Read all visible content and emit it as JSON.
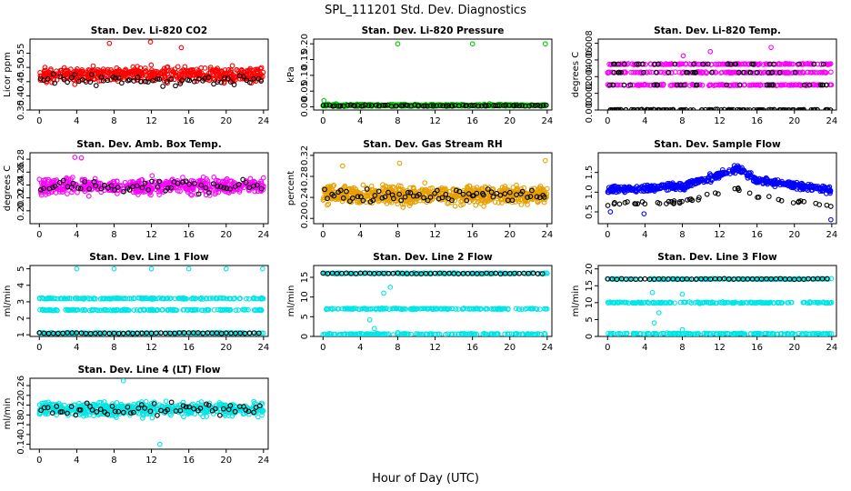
{
  "figure": {
    "title": "SPL_111201  Std. Dev. Diagnostics",
    "xlabel": "Hour of Day (UTC)"
  },
  "chart_data": [
    {
      "type": "scatter",
      "title": "Stan. Dev. Li-820 CO2",
      "ylabel": "Licor ppm",
      "xlim": [
        -1,
        24.5
      ],
      "xticks": [
        0,
        4,
        8,
        12,
        16,
        20,
        24
      ],
      "ylim": [
        0.35,
        0.6
      ],
      "yticks": [
        0.35,
        0.4,
        0.45,
        0.5,
        0.55
      ],
      "ytick_labels": [
        "0.35",
        "0.40",
        "0.45",
        "0.50",
        "0.55"
      ],
      "colors": {
        "primary": "#ff0000",
        "secondary": "#000000"
      },
      "bands": [
        {
          "y": 0.475,
          "spread": 0.045,
          "n": 520,
          "color": "#ff0000"
        }
      ],
      "highlights": [
        {
          "y": 0.455,
          "spread": 0.035,
          "n": 60,
          "color": "#000000"
        }
      ],
      "outliers": [
        [
          11.9,
          0.59
        ],
        [
          7.5,
          0.585
        ],
        [
          15.2,
          0.57
        ]
      ]
    },
    {
      "type": "scatter",
      "title": "Stan. Dev. Li-820 Pressure",
      "ylabel": "kPa",
      "xlim": [
        -1,
        24.5
      ],
      "xticks": [
        0,
        4,
        8,
        12,
        16,
        20,
        24
      ],
      "ylim": [
        -0.01,
        0.215
      ],
      "yticks": [
        0.0,
        0.05,
        0.1,
        0.15,
        0.2
      ],
      "ytick_labels": [
        "0.00",
        "0.05",
        "0.10",
        "0.15",
        "0.20"
      ],
      "colors": {
        "primary": "#00cc00",
        "secondary": "#000000"
      },
      "bands": [
        {
          "y": 0.005,
          "spread": 0.006,
          "n": 420,
          "color": "#00cc00"
        }
      ],
      "highlights": [
        {
          "y": 0.004,
          "spread": 0.004,
          "n": 80,
          "color": "#000000"
        }
      ],
      "outliers": [
        [
          8.0,
          0.2
        ],
        [
          16.0,
          0.2
        ],
        [
          23.8,
          0.2
        ],
        [
          0.1,
          0.02
        ]
      ]
    },
    {
      "type": "scatter",
      "title": "Stan. Dev. Li-820 Temp.",
      "ylabel": "degrees C",
      "xlim": [
        -1,
        24.5
      ],
      "xticks": [
        0,
        4,
        8,
        12,
        16,
        20,
        24
      ],
      "ylim": [
        0,
        0.0085
      ],
      "yticks": [
        0.0,
        0.002,
        0.004,
        0.006,
        0.008
      ],
      "ytick_labels": [
        "0.000",
        "0.002",
        "0.004",
        "0.006",
        "0.008"
      ],
      "colors": {
        "primary": "#ff00ff",
        "secondary": "#000000"
      },
      "levels": [
        0.0,
        0.003,
        0.0045,
        0.0055
      ],
      "outliers": [
        [
          17.5,
          0.0075
        ],
        [
          8.1,
          0.0065
        ],
        [
          11.0,
          0.007
        ]
      ]
    },
    {
      "type": "scatter",
      "title": "Stan. Dev. Amb. Box Temp.",
      "ylabel": "degrees C",
      "xlim": [
        -1,
        24.5
      ],
      "xticks": [
        0,
        4,
        8,
        12,
        16,
        20,
        24
      ],
      "ylim": [
        0.18,
        0.29
      ],
      "yticks": [
        0.2,
        0.22,
        0.24,
        0.26,
        0.28
      ],
      "ytick_labels": [
        "0.20",
        "0.22",
        "0.24",
        "0.26",
        "0.28"
      ],
      "colors": {
        "primary": "#ff00ff",
        "secondary": "#000000"
      },
      "bands": [
        {
          "y": 0.238,
          "spread": 0.022,
          "n": 480,
          "color": "#ff00ff"
        }
      ],
      "highlights": [
        {
          "y": 0.238,
          "spread": 0.018,
          "n": 60,
          "color": "#000000"
        }
      ],
      "outliers": [
        [
          3.8,
          0.283
        ],
        [
          4.5,
          0.282
        ]
      ]
    },
    {
      "type": "scatter",
      "title": "Stan. Dev. Gas Stream RH",
      "ylabel": "percent",
      "xlim": [
        -1,
        24.5
      ],
      "xticks": [
        0,
        4,
        8,
        12,
        16,
        20,
        24
      ],
      "ylim": [
        0.19,
        0.325
      ],
      "yticks": [
        0.2,
        0.24,
        0.28,
        0.32
      ],
      "ytick_labels": [
        "0.20",
        "0.24",
        "0.28",
        "0.32"
      ],
      "colors": {
        "primary": "#e8a000",
        "secondary": "#000000"
      },
      "bands": [
        {
          "y": 0.245,
          "spread": 0.03,
          "n": 700,
          "color": "#e8a000"
        }
      ],
      "highlights": [
        {
          "y": 0.245,
          "spread": 0.022,
          "n": 70,
          "color": "#000000"
        }
      ],
      "outliers": [
        [
          23.8,
          0.31
        ],
        [
          8.2,
          0.305
        ],
        [
          2.1,
          0.3
        ]
      ]
    },
    {
      "type": "scatter",
      "title": "Stan. Dev. Sample Flow",
      "ylabel": "",
      "xlim": [
        -1,
        24.5
      ],
      "xticks": [
        0,
        4,
        8,
        12,
        16,
        20,
        24
      ],
      "ylim": [
        0.2,
        2.0
      ],
      "yticks": [
        0.5,
        1.0,
        1.5
      ],
      "ytick_labels": [
        "0.5",
        "1.0",
        "1.5"
      ],
      "colors": {
        "primary": "#0000ff",
        "secondary": "#000000"
      },
      "trend": {
        "x": [
          0,
          8,
          14,
          16,
          24
        ],
        "y": [
          1.05,
          1.15,
          1.6,
          1.3,
          1.05
        ]
      },
      "lower_trend": {
        "x": [
          0,
          8,
          14,
          16,
          24
        ],
        "y": [
          0.7,
          0.75,
          1.1,
          0.9,
          0.65
        ]
      },
      "outliers": [
        [
          23.9,
          0.3
        ],
        [
          0.3,
          0.5
        ],
        [
          3.9,
          0.45
        ]
      ]
    },
    {
      "type": "scatter",
      "title": "Stan. Dev. Line 1 Flow",
      "ylabel": "ml/min",
      "xlim": [
        -1,
        24.5
      ],
      "xticks": [
        0,
        4,
        8,
        12,
        16,
        20,
        24
      ],
      "ylim": [
        0.9,
        5.2
      ],
      "yticks": [
        1,
        2,
        3,
        4,
        5
      ],
      "ytick_labels": [
        "1",
        "2",
        "3",
        "4",
        "5"
      ],
      "colors": {
        "primary": "#00e5e5",
        "secondary": "#000000"
      },
      "levels": [
        3.2,
        2.5,
        1.1
      ],
      "black_level": 1.1,
      "outliers": [
        [
          4.0,
          5.0
        ],
        [
          8.0,
          5.0
        ],
        [
          12.0,
          5.0
        ],
        [
          16.0,
          5.0
        ],
        [
          20.0,
          5.0
        ],
        [
          23.9,
          5.0
        ]
      ]
    },
    {
      "type": "scatter",
      "title": "Stan. Dev. Line 2 Flow",
      "ylabel": "ml/min",
      "xlim": [
        -1,
        24.5
      ],
      "xticks": [
        0,
        4,
        8,
        12,
        16,
        20,
        24
      ],
      "ylim": [
        0,
        18
      ],
      "yticks": [
        0,
        5,
        10,
        15
      ],
      "ytick_labels": [
        "0",
        "5",
        "10",
        "15"
      ],
      "colors": {
        "primary": "#00e5e5",
        "secondary": "#000000"
      },
      "levels": [
        16,
        7,
        0.6
      ],
      "black_level": 16,
      "outliers": [
        [
          5.0,
          4.2
        ],
        [
          8.0,
          1.0
        ],
        [
          6.5,
          11
        ],
        [
          7.2,
          12.5
        ],
        [
          5.5,
          2.0
        ]
      ]
    },
    {
      "type": "scatter",
      "title": "Stan. Dev. Line 3 Flow",
      "ylabel": "ml/min",
      "xlim": [
        -1,
        24.5
      ],
      "xticks": [
        0,
        4,
        8,
        12,
        16,
        20,
        24
      ],
      "ylim": [
        0,
        21
      ],
      "yticks": [
        0,
        5,
        10,
        15,
        20
      ],
      "ytick_labels": [
        "0",
        "5",
        "10",
        "15",
        "20"
      ],
      "colors": {
        "primary": "#00e5e5",
        "secondary": "#000000"
      },
      "levels": [
        17,
        10,
        0.8
      ],
      "black_level": 17,
      "outliers": [
        [
          5.0,
          4.0
        ],
        [
          8.0,
          2.0
        ],
        [
          4.8,
          13
        ],
        [
          5.5,
          7
        ],
        [
          8.0,
          12.5
        ]
      ]
    },
    {
      "type": "scatter",
      "title": "Stan. Dev. Line 4 (LT) Flow",
      "ylabel": "ml/min",
      "xlim": [
        -1,
        24.5
      ],
      "xticks": [
        0,
        4,
        8,
        12,
        16,
        20,
        24
      ],
      "ylim": [
        0.13,
        0.275
      ],
      "yticks": [
        0.14,
        0.16,
        0.18,
        0.2,
        0.22,
        0.24,
        0.26
      ],
      "ytick_labels": [
        "0.14",
        "",
        "0.18",
        "",
        "0.22",
        "",
        "0.26"
      ],
      "colors": {
        "primary": "#00e5e5",
        "secondary": "#000000"
      },
      "bands": [
        {
          "y": 0.212,
          "spread": 0.025,
          "n": 520,
          "color": "#00e5e5"
        }
      ],
      "highlights": [
        {
          "y": 0.212,
          "spread": 0.022,
          "n": 60,
          "color": "#000000"
        }
      ],
      "outliers": [
        [
          12.9,
          0.14
        ],
        [
          9.0,
          0.27
        ]
      ]
    }
  ]
}
